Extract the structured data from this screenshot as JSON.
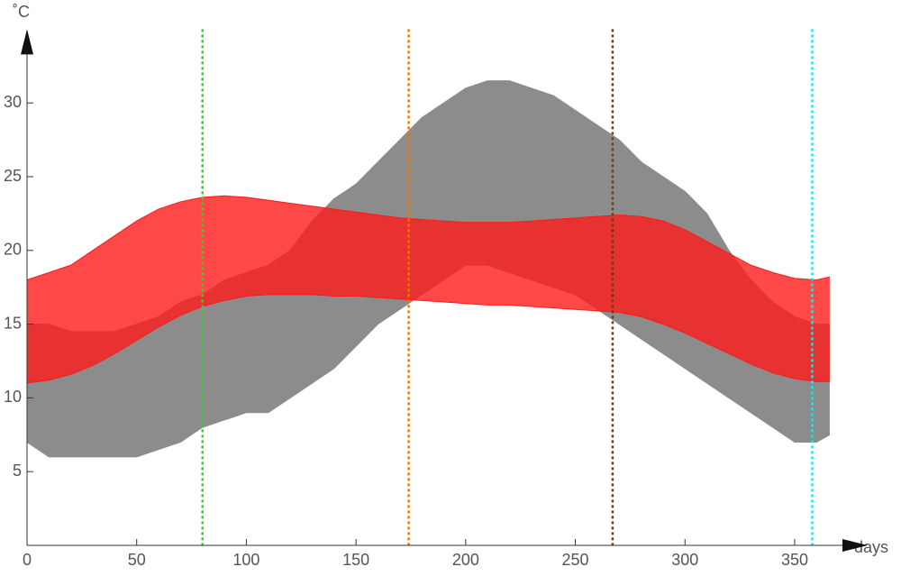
{
  "chart_data": {
    "type": "range",
    "xlabel": "days",
    "ylabel": "˚C",
    "x": [
      0,
      10,
      20,
      30,
      40,
      50,
      60,
      70,
      80,
      90,
      100,
      110,
      120,
      130,
      140,
      150,
      160,
      170,
      180,
      190,
      200,
      210,
      220,
      230,
      240,
      250,
      260,
      270,
      280,
      290,
      300,
      310,
      320,
      330,
      340,
      350,
      360,
      366
    ],
    "series": [
      {
        "color": "#8c8c8c",
        "upper": [
          15,
          15,
          14.5,
          14.5,
          14.5,
          15,
          15.5,
          16.5,
          17,
          18,
          18.5,
          19,
          20,
          22,
          23.5,
          24.5,
          26,
          27.5,
          29,
          30,
          31,
          31.5,
          31.5,
          31,
          30.5,
          29.5,
          28.5,
          27.5,
          26,
          25,
          24,
          22.5,
          20,
          18,
          16.5,
          15.5,
          15,
          15
        ],
        "lower": [
          7,
          6,
          6,
          6,
          6,
          6,
          6.5,
          7,
          8,
          8.5,
          9,
          9,
          10,
          11,
          12,
          13.5,
          15,
          16,
          17,
          18,
          19,
          19,
          18.5,
          18,
          17.5,
          17,
          16,
          15,
          14,
          13,
          12,
          11,
          10,
          9,
          8,
          7,
          7,
          7.5
        ]
      },
      {
        "color": "#ff1a1a",
        "upper": [
          18,
          18.5,
          19,
          20,
          21,
          22,
          22.8,
          23.3,
          23.6,
          23.7,
          23.6,
          23.4,
          23.2,
          23,
          22.8,
          22.6,
          22.4,
          22.2,
          22.1,
          22,
          21.9,
          21.9,
          21.9,
          22,
          22.1,
          22.2,
          22.3,
          22.4,
          22.3,
          22,
          21.4,
          20.6,
          19.8,
          19,
          18.5,
          18.1,
          18,
          18.2
        ],
        "lower": [
          11,
          11.2,
          11.6,
          12.2,
          13,
          13.9,
          14.8,
          15.6,
          16.2,
          16.6,
          16.9,
          17,
          17,
          17,
          16.9,
          16.9,
          16.8,
          16.7,
          16.6,
          16.5,
          16.4,
          16.3,
          16.3,
          16.2,
          16.1,
          16,
          15.9,
          15.8,
          15.5,
          15,
          14.4,
          13.7,
          13,
          12.3,
          11.7,
          11.3,
          11.1,
          11.1
        ]
      }
    ],
    "vlines": [
      {
        "x": 80,
        "color": "#22dd22"
      },
      {
        "x": 174,
        "color": "#ee7700"
      },
      {
        "x": 267,
        "color": "#6b3e10"
      },
      {
        "x": 358,
        "color": "#22e5e5"
      }
    ],
    "xlim": [
      0,
      380
    ],
    "ylim": [
      0,
      35
    ],
    "xticks": [
      0,
      50,
      100,
      150,
      200,
      250,
      300,
      350
    ],
    "yticks": [
      5,
      10,
      15,
      20,
      25,
      30
    ]
  }
}
